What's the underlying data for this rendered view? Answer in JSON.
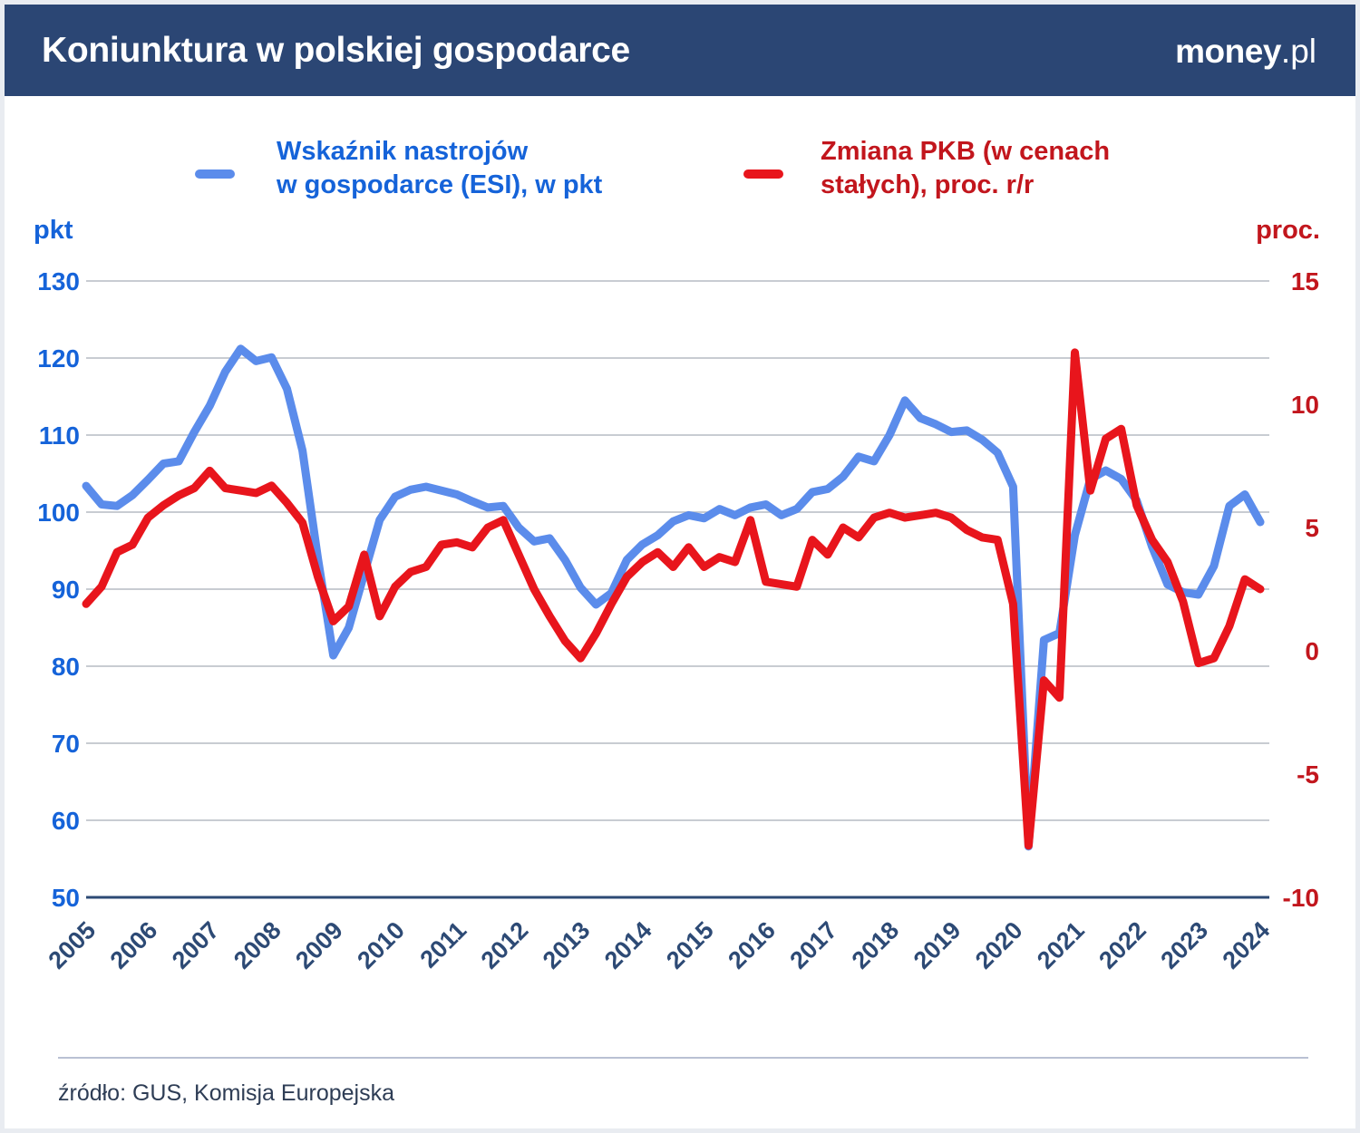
{
  "header": {
    "title": "Koniunktura w polskiej gospodarce",
    "brand": {
      "name": "money",
      "suffix": ".pl"
    }
  },
  "axes": {
    "left_unit": "pkt",
    "right_unit": "proc.",
    "left_ticks": [
      130,
      120,
      110,
      100,
      90,
      80,
      70,
      60,
      50
    ],
    "right_ticks": [
      15,
      10,
      5,
      0,
      -5,
      -10
    ],
    "years": [
      "2005",
      "2006",
      "2007",
      "2008",
      "2009",
      "2010",
      "2011",
      "2012",
      "2013",
      "2014",
      "2015",
      "2016",
      "2017",
      "2018",
      "2019",
      "2020",
      "2021",
      "2022",
      "2023",
      "2024"
    ]
  },
  "chart_data": {
    "type": "line",
    "title": "Koniunktura w polskiej gospodarce",
    "x": {
      "start": "2005-Q1",
      "end": "2024-Q1",
      "frequency": "quarterly"
    },
    "ylim_left": [
      50,
      130
    ],
    "ylim_right": [
      -10,
      15
    ],
    "grid": true,
    "legend_position": "top",
    "series": [
      {
        "name": "Wskaźnik nastrojów\nw gospodarce (ESI), w pkt",
        "axis": "left",
        "unit": "pkt",
        "color": "#5b8ceb",
        "values": [
          103.4,
          101.0,
          100.8,
          102.2,
          104.2,
          106.3,
          106.6,
          110.4,
          113.8,
          118.2,
          121.2,
          119.6,
          120.1,
          116.0,
          108.0,
          94.0,
          81.4,
          85.0,
          92.0,
          99.0,
          102.0,
          102.9,
          103.3,
          102.8,
          102.3,
          101.4,
          100.6,
          100.8,
          98.0,
          96.2,
          96.6,
          93.8,
          90.2,
          88.0,
          89.5,
          93.8,
          95.8,
          97.0,
          98.8,
          99.6,
          99.2,
          100.4,
          99.6,
          100.6,
          101.0,
          99.6,
          100.4,
          102.6,
          103.0,
          104.6,
          107.2,
          106.6,
          110.0,
          114.5,
          112.2,
          111.4,
          110.4,
          110.6,
          109.4,
          107.7,
          103.3,
          56.6,
          83.4,
          84.3,
          97.0,
          104.3,
          105.4,
          104.3,
          101.5,
          95.5,
          90.6,
          89.6,
          89.3,
          93.0,
          100.8,
          102.3,
          98.7
        ]
      },
      {
        "name": "Zmiana PKB (w cenach\nstałych), proc. r/r",
        "axis": "right",
        "unit": "proc.",
        "color": "#e8151c",
        "values": [
          1.9,
          2.6,
          4.0,
          4.3,
          5.4,
          5.9,
          6.3,
          6.6,
          7.3,
          6.6,
          6.5,
          6.4,
          6.7,
          6.0,
          5.2,
          3.0,
          1.2,
          1.8,
          3.9,
          1.4,
          2.6,
          3.2,
          3.4,
          4.3,
          4.4,
          4.2,
          5.0,
          5.3,
          3.9,
          2.5,
          1.4,
          0.4,
          -0.3,
          0.7,
          1.9,
          3.0,
          3.6,
          4.0,
          3.4,
          4.2,
          3.4,
          3.8,
          3.6,
          5.3,
          2.8,
          2.7,
          2.6,
          4.5,
          3.9,
          5.0,
          4.6,
          5.4,
          5.6,
          5.4,
          5.5,
          5.6,
          5.4,
          4.9,
          4.6,
          4.5,
          1.9,
          -7.9,
          -1.2,
          -1.9,
          12.1,
          6.5,
          8.6,
          9.0,
          5.9,
          4.5,
          3.6,
          2.0,
          -0.5,
          -0.3,
          1.0,
          2.9,
          2.5
        ]
      }
    ]
  },
  "footer": {
    "source": "źródło: GUS, Komisja Europejska"
  },
  "colors": {
    "header_bg": "#2b4674",
    "esi_line": "#5b8ceb",
    "esi_text": "#1563d9",
    "gdp_line": "#e8151c",
    "gdp_text": "#c2161d",
    "year_label": "#2d4a75",
    "gridline": "#b5bbc4",
    "axis_line": "#2d4a75",
    "divider": "#b9c1d3",
    "source_text": "#2e3d55",
    "page_frame": "#e9ecf1"
  }
}
